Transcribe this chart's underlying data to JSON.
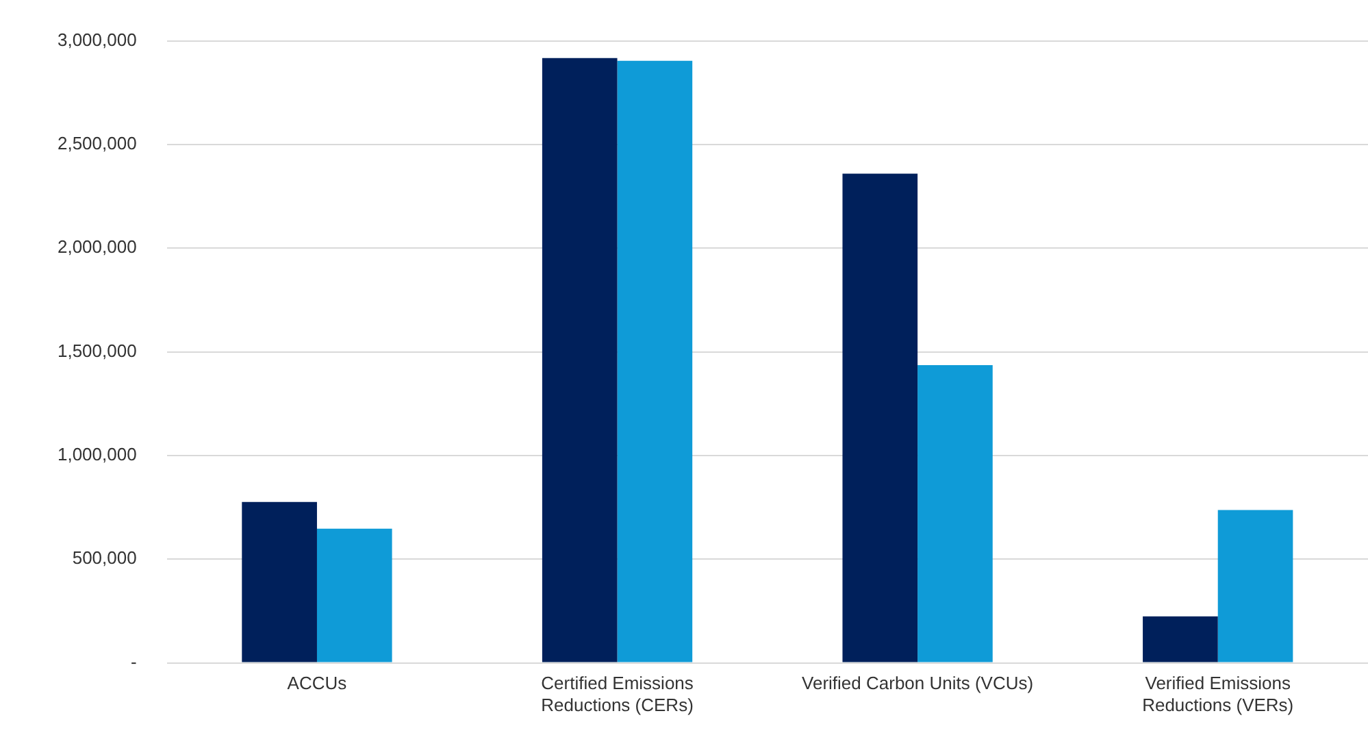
{
  "chart_data": {
    "type": "bar",
    "categories": [
      "ACCUs",
      "Certified Emissions\nReductions (CERs)",
      "Verified Carbon Units (VCUs)",
      "Verified Emissions\nReductions (VERs)"
    ],
    "series": [
      {
        "color": "#00205b",
        "values": [
          776000,
          2917000,
          2359000,
          224000
        ]
      },
      {
        "color": "#0f9bd7",
        "values": [
          647000,
          2904000,
          1436000,
          737000
        ]
      }
    ],
    "ylim": [
      0,
      3000000
    ],
    "yticks": [
      {
        "value": 0,
        "label": "-"
      },
      {
        "value": 500000,
        "label": "500,000"
      },
      {
        "value": 1000000,
        "label": "1,000,000"
      },
      {
        "value": 1500000,
        "label": "1,500,000"
      },
      {
        "value": 2000000,
        "label": "2,000,000"
      },
      {
        "value": 2500000,
        "label": "2,500,000"
      },
      {
        "value": 3000000,
        "label": "3,000,000"
      }
    ],
    "grid": "y",
    "legend": false
  }
}
